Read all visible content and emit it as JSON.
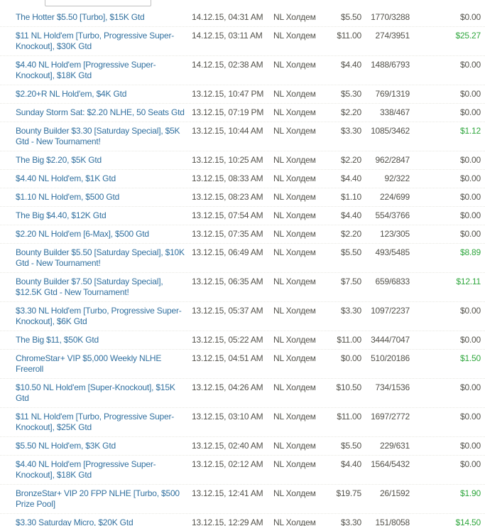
{
  "filter_box": {
    "value": ""
  },
  "colors": {
    "link_blue": "#31709F",
    "body_text": "#53524B",
    "win_positive_green": "#2EA63C",
    "row_separator": "#E8E8E2",
    "input_border": "#BFBFBF"
  },
  "table": {
    "columns": [
      "tournament",
      "start_time",
      "game",
      "buy_in",
      "position",
      "won"
    ],
    "game_label": "NL Холдем",
    "zero_win_value": "$0.00",
    "rows": [
      {
        "tournament": "The Hotter $5.50 [Turbo], $15K Gtd",
        "start_time": "14.12.15, 04:31 AM",
        "game": "NL Холдем",
        "buy_in": "$5.50",
        "position": "1770/3288",
        "won": "$0.00"
      },
      {
        "tournament": "$11 NL Hold'em [Turbo, Progressive Super-Knockout], $30K Gtd",
        "start_time": "14.12.15, 03:11 AM",
        "game": "NL Холдем",
        "buy_in": "$11.00",
        "position": "274/3951",
        "won": "$25.27"
      },
      {
        "tournament": "$4.40 NL Hold'em [Progressive Super-Knockout], $18K Gtd",
        "start_time": "14.12.15, 02:38 AM",
        "game": "NL Холдем",
        "buy_in": "$4.40",
        "position": "1488/6793",
        "won": "$0.00"
      },
      {
        "tournament": "$2.20+R NL Hold'em, $4K Gtd",
        "start_time": "13.12.15, 10:47 PM",
        "game": "NL Холдем",
        "buy_in": "$5.30",
        "position": "769/1319",
        "won": "$0.00"
      },
      {
        "tournament": "Sunday Storm Sat: $2.20 NLHE, 50 Seats Gtd",
        "start_time": "13.12.15, 07:19 PM",
        "game": "NL Холдем",
        "buy_in": "$2.20",
        "position": "338/467",
        "won": "$0.00"
      },
      {
        "tournament": "Bounty Builder $3.30 [Saturday Special], $5K Gtd - New Tournament!",
        "start_time": "13.12.15, 10:44 AM",
        "game": "NL Холдем",
        "buy_in": "$3.30",
        "position": "1085/3462",
        "won": "$1.12"
      },
      {
        "tournament": "The Big $2.20, $5K Gtd",
        "start_time": "13.12.15, 10:25 AM",
        "game": "NL Холдем",
        "buy_in": "$2.20",
        "position": "962/2847",
        "won": "$0.00"
      },
      {
        "tournament": "$4.40 NL Hold'em, $1K Gtd",
        "start_time": "13.12.15, 08:33 AM",
        "game": "NL Холдем",
        "buy_in": "$4.40",
        "position": "92/322",
        "won": "$0.00"
      },
      {
        "tournament": "$1.10 NL Hold'em, $500 Gtd",
        "start_time": "13.12.15, 08:23 AM",
        "game": "NL Холдем",
        "buy_in": "$1.10",
        "position": "224/699",
        "won": "$0.00"
      },
      {
        "tournament": "The Big $4.40, $12K Gtd",
        "start_time": "13.12.15, 07:54 AM",
        "game": "NL Холдем",
        "buy_in": "$4.40",
        "position": "554/3766",
        "won": "$0.00"
      },
      {
        "tournament": "$2.20 NL Hold'em [6-Max], $500 Gtd",
        "start_time": "13.12.15, 07:35 AM",
        "game": "NL Холдем",
        "buy_in": "$2.20",
        "position": "123/305",
        "won": "$0.00"
      },
      {
        "tournament": "Bounty Builder $5.50 [Saturday Special], $10K Gtd - New Tournament!",
        "start_time": "13.12.15, 06:49 AM",
        "game": "NL Холдем",
        "buy_in": "$5.50",
        "position": "493/5485",
        "won": "$8.89"
      },
      {
        "tournament": "Bounty Builder $7.50 [Saturday Special], $12.5K Gtd - New Tournament!",
        "start_time": "13.12.15, 06:35 AM",
        "game": "NL Холдем",
        "buy_in": "$7.50",
        "position": "659/6833",
        "won": "$12.11"
      },
      {
        "tournament": "$3.30 NL Hold'em [Turbo, Progressive Super-Knockout], $6K Gtd",
        "start_time": "13.12.15, 05:37 AM",
        "game": "NL Холдем",
        "buy_in": "$3.30",
        "position": "1097/2237",
        "won": "$0.00"
      },
      {
        "tournament": "The Big $11, $50K Gtd",
        "start_time": "13.12.15, 05:22 AM",
        "game": "NL Холдем",
        "buy_in": "$11.00",
        "position": "3444/7047",
        "won": "$0.00"
      },
      {
        "tournament": "ChromeStar+ VIP $5,000 Weekly NLHE Freeroll",
        "start_time": "13.12.15, 04:51 AM",
        "game": "NL Холдем",
        "buy_in": "$0.00",
        "position": "510/20186",
        "won": "$1.50"
      },
      {
        "tournament": "$10.50 NL Hold'em [Super-Knockout], $15K Gtd",
        "start_time": "13.12.15, 04:26 AM",
        "game": "NL Холдем",
        "buy_in": "$10.50",
        "position": "734/1536",
        "won": "$0.00"
      },
      {
        "tournament": "$11 NL Hold'em [Turbo, Progressive Super-Knockout], $25K Gtd",
        "start_time": "13.12.15, 03:10 AM",
        "game": "NL Холдем",
        "buy_in": "$11.00",
        "position": "1697/2772",
        "won": "$0.00"
      },
      {
        "tournament": "$5.50 NL Hold'em, $3K Gtd",
        "start_time": "13.12.15, 02:40 AM",
        "game": "NL Холдем",
        "buy_in": "$5.50",
        "position": "229/631",
        "won": "$0.00"
      },
      {
        "tournament": "$4.40 NL Hold'em [Progressive Super-Knockout], $18K Gtd",
        "start_time": "13.12.15, 02:12 AM",
        "game": "NL Холдем",
        "buy_in": "$4.40",
        "position": "1564/5432",
        "won": "$0.00"
      },
      {
        "tournament": "BronzeStar+ VIP 20 FPP NLHE [Turbo, $500 Prize Pool]",
        "start_time": "13.12.15, 12:41 AM",
        "game": "NL Холдем",
        "buy_in": "$19.75",
        "position": "26/1592",
        "won": "$1.90"
      },
      {
        "tournament": "$3.30 Saturday Micro, $20K Gtd",
        "start_time": "13.12.15, 12:29 AM",
        "game": "NL Холдем",
        "buy_in": "$3.30",
        "position": "151/8058",
        "won": "$14.50"
      }
    ]
  }
}
